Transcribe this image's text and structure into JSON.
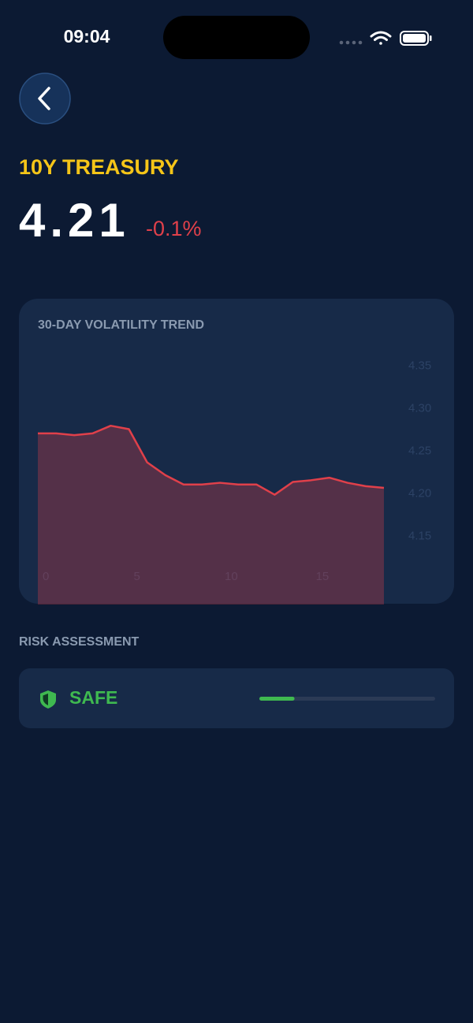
{
  "status_bar": {
    "time": "09:04"
  },
  "header": {
    "title": "10Y TREASURY",
    "price": "4.21",
    "change": "-0.1%"
  },
  "chart_data": {
    "type": "area",
    "title": "30-DAY VOLATILITY TREND",
    "x": [
      0,
      1,
      2,
      3,
      4,
      5,
      6,
      7,
      8,
      9,
      10,
      11,
      12,
      13,
      14,
      15,
      16,
      17,
      18,
      19
    ],
    "values": [
      4.271,
      4.271,
      4.269,
      4.271,
      4.28,
      4.276,
      4.237,
      4.222,
      4.211,
      4.211,
      4.213,
      4.211,
      4.211,
      4.199,
      4.214,
      4.216,
      4.219,
      4.213,
      4.209,
      4.207
    ],
    "color": "#e0404a",
    "xlim": [
      0,
      19
    ],
    "xticks": [
      0,
      5,
      10,
      15
    ],
    "ylim": [
      4.07,
      4.37
    ],
    "yticks": [
      4.35,
      {
        "value": 4.3,
        "label": "4.30"
      },
      4.25,
      {
        "value": 4.2,
        "label": "4.20"
      },
      4.15
    ]
  },
  "risk": {
    "label": "RISK ASSESSMENT",
    "status": "SAFE",
    "score": 20
  }
}
